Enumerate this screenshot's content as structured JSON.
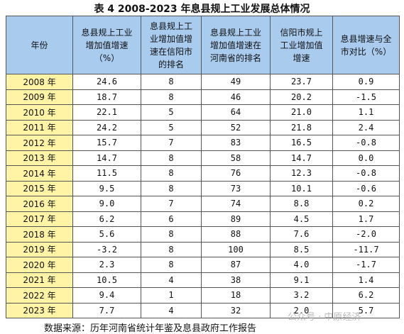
{
  "title": "表 4 2008-2023 年息县规上工业发展总体情况",
  "table": {
    "headers": [
      "年份",
      "息县规上工业增加值增速（%）",
      "息县规上工业增加值增速在信阳市的排名",
      "息县规上工业增加值增速在河南省的排名",
      "信阳市规上工业增加值增速",
      "息县增速与全市对比（%）"
    ],
    "rows": [
      [
        "2008 年",
        "24.6",
        "8",
        "49",
        "23.7",
        "0.9"
      ],
      [
        "2009 年",
        "18.7",
        "8",
        "46",
        "20.2",
        "-1.5"
      ],
      [
        "2010 年",
        "22.1",
        "5",
        "64",
        "21.0",
        "1.1"
      ],
      [
        "2011 年",
        "24.2",
        "5",
        "52",
        "21.8",
        "2.4"
      ],
      [
        "2012 年",
        "15.7",
        "7",
        "83",
        "16.5",
        "-0.8"
      ],
      [
        "2013 年",
        "14.7",
        "8",
        "58",
        "14.7",
        "0.0"
      ],
      [
        "2014 年",
        "11.5",
        "8",
        "76",
        "12.3",
        "-0.8"
      ],
      [
        "2015 年",
        "9.5",
        "8",
        "73",
        "10.1",
        "-0.6"
      ],
      [
        "2016 年",
        "9.0",
        "7",
        "74",
        "8.8",
        "0.2"
      ],
      [
        "2017 年",
        "6.2",
        "6",
        "89",
        "4.5",
        "1.7"
      ],
      [
        "2018 年",
        "5.6",
        "8",
        "88",
        "7.6",
        "-2.0"
      ],
      [
        "2019 年",
        "-3.2",
        "8",
        "100",
        "8.5",
        "-11.7"
      ],
      [
        "2020 年",
        "2.3",
        "8",
        "87",
        "4.0",
        "-1.7"
      ],
      [
        "2021 年",
        "10.5",
        "4",
        "38",
        "9.1",
        "1.4"
      ],
      [
        "2022 年",
        "9.4",
        "1",
        "18",
        "3.2",
        "6.2"
      ],
      [
        "2023 年",
        "7.7",
        "4",
        "32",
        "2.0",
        "5.7"
      ]
    ]
  },
  "source": "数据来源：历年河南省统计年鉴及息县政府工作报告",
  "watermark": "公众号 · 中原经济"
}
